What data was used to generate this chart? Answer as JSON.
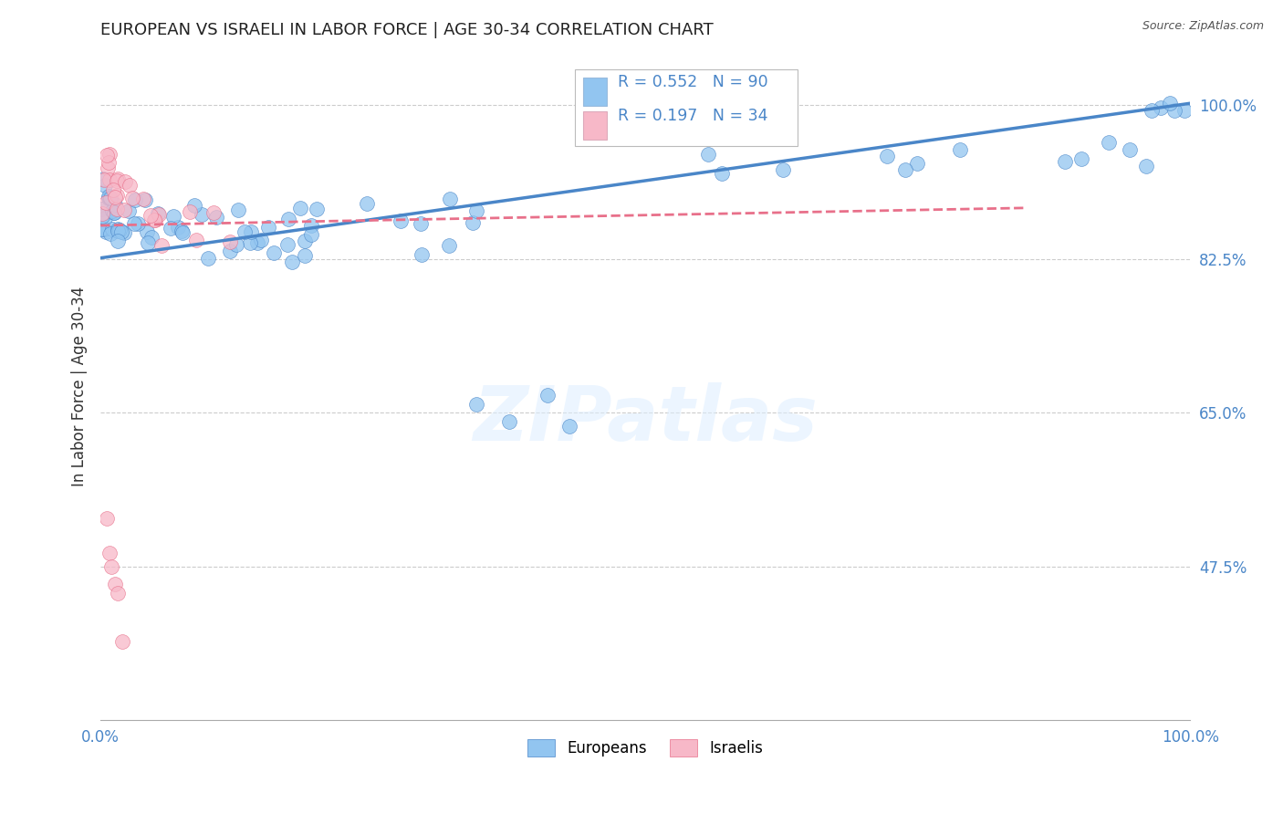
{
  "title": "EUROPEAN VS ISRAELI IN LABOR FORCE | AGE 30-34 CORRELATION CHART",
  "source": "Source: ZipAtlas.com",
  "ylabel": "In Labor Force | Age 30-34",
  "xlim": [
    0.0,
    1.0
  ],
  "ylim": [
    0.3,
    1.06
  ],
  "yticks": [
    0.475,
    0.65,
    0.825,
    1.0
  ],
  "ytick_labels": [
    "47.5%",
    "65.0%",
    "82.5%",
    "100.0%"
  ],
  "xticks": [
    0.0,
    1.0
  ],
  "xtick_labels": [
    "0.0%",
    "100.0%"
  ],
  "background_color": "#ffffff",
  "grid_color": "#cccccc",
  "europeans_color": "#92C5F0",
  "israelis_color": "#F7B8C8",
  "line_european_color": "#4A86C8",
  "line_israeli_color": "#E8708A",
  "legend_label_european": "Europeans",
  "legend_label_israeli": "Israelis",
  "R_european": 0.552,
  "N_european": 90,
  "R_israeli": 0.197,
  "N_israeli": 34,
  "watermark": "ZIPatlas",
  "eu_trend_x0": 0.0,
  "eu_trend_y0": 0.826,
  "eu_trend_x1": 1.0,
  "eu_trend_y1": 1.002,
  "isr_trend_x0": 0.0,
  "isr_trend_y0": 0.863,
  "isr_trend_x1": 0.85,
  "isr_trend_y1": 0.883
}
